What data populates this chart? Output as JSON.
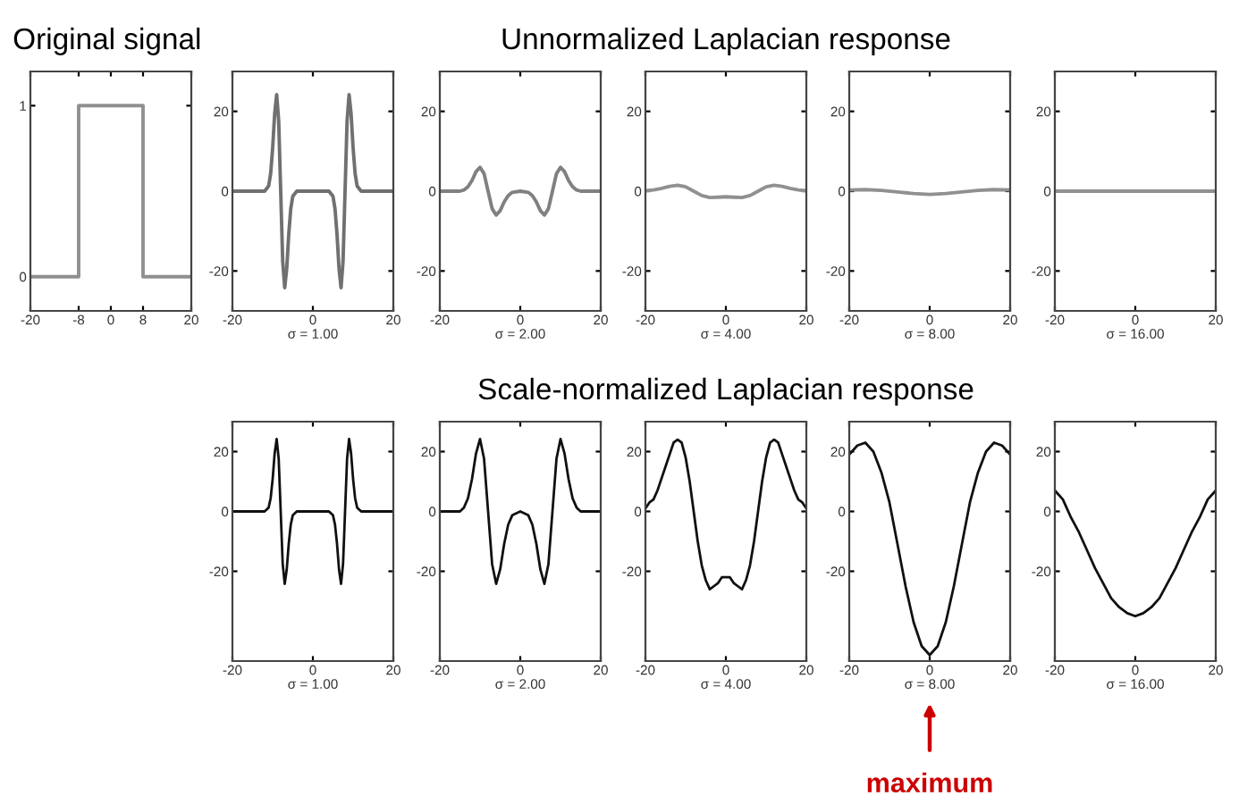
{
  "chart_data": [
    {
      "type": "line",
      "title": "Original signal",
      "xlim": [
        -20,
        20
      ],
      "xticks": [
        -20,
        -8,
        0,
        8,
        20
      ],
      "ylim": [
        -0.2,
        1.2
      ],
      "yticks": [
        0,
        1
      ],
      "series": [
        {
          "color": "#909090",
          "x": [
            -20,
            -8,
            -8,
            8,
            8,
            20
          ],
          "values": [
            0,
            0,
            1,
            1,
            0,
            0
          ]
        }
      ]
    },
    {
      "type": "line",
      "xlabel": "σ = 1.00",
      "xlim": [
        -20,
        20
      ],
      "xticks": [
        -20,
        0,
        20
      ],
      "ylim": [
        -30,
        30
      ],
      "yticks": [
        -20,
        0,
        20
      ],
      "series": [
        {
          "color": "#707070",
          "x": [
            -20,
            -12,
            -11,
            -10.5,
            -10,
            -9.5,
            -9,
            -8.5,
            -8,
            -7.5,
            -7,
            -6.5,
            -6,
            -5.5,
            -5,
            -4,
            4,
            5,
            5.5,
            6,
            6.5,
            7,
            7.5,
            8,
            8.5,
            9,
            9.5,
            10,
            10.5,
            11,
            12,
            20
          ],
          "values": [
            0,
            0,
            1.3,
            4.4,
            10.8,
            19.4,
            24.2,
            17.6,
            0,
            -17.6,
            -24.2,
            -19.4,
            -10.8,
            -4.4,
            -1.3,
            0,
            0,
            -1.3,
            -4.4,
            -10.8,
            -19.4,
            -24.2,
            -17.6,
            0,
            17.6,
            24.2,
            19.4,
            10.8,
            4.4,
            1.3,
            0,
            0
          ]
        }
      ]
    },
    {
      "type": "line",
      "xlabel": "σ = 2.00",
      "xlim": [
        -20,
        20
      ],
      "xticks": [
        -20,
        0,
        20
      ],
      "ylim": [
        -30,
        30
      ],
      "yticks": [
        -20,
        0,
        20
      ],
      "series": [
        {
          "color": "#808080",
          "x": [
            -20,
            -15,
            -14,
            -13,
            -12,
            -11,
            -10,
            -9,
            -8,
            -7,
            -6,
            -5,
            -4,
            -3,
            -2,
            0,
            2,
            3,
            4,
            5,
            6,
            7,
            8,
            9,
            10,
            11,
            12,
            13,
            14,
            15,
            20
          ],
          "values": [
            0,
            0,
            0.3,
            1.1,
            2.7,
            4.9,
            6,
            4.4,
            0,
            -4.4,
            -6,
            -4.9,
            -2.7,
            -1.1,
            -0.3,
            0,
            -0.3,
            -1.1,
            -2.7,
            -4.9,
            -6,
            -4.4,
            0,
            4.4,
            6,
            4.9,
            2.7,
            1.1,
            0.3,
            0,
            0
          ]
        }
      ]
    },
    {
      "type": "line",
      "title": "Unnormalized Laplacian response",
      "xlabel": "σ = 4.00",
      "xlim": [
        -20,
        20
      ],
      "xticks": [
        -20,
        0,
        20
      ],
      "ylim": [
        -30,
        30
      ],
      "yticks": [
        -20,
        0,
        20
      ],
      "series": [
        {
          "color": "#909090",
          "x": [
            -20,
            -18,
            -16,
            -14,
            -12,
            -10,
            -8,
            -6,
            -4,
            -2,
            0,
            2,
            4,
            6,
            8,
            10,
            12,
            14,
            16,
            18,
            20
          ],
          "values": [
            0.1,
            0.3,
            0.7,
            1.2,
            1.5,
            1.1,
            0,
            -1.1,
            -1.6,
            -1.5,
            -1.4,
            -1.5,
            -1.6,
            -1.1,
            0,
            1.1,
            1.5,
            1.2,
            0.7,
            0.3,
            0.1
          ]
        }
      ]
    },
    {
      "type": "line",
      "xlabel": "σ = 8.00",
      "xlim": [
        -20,
        20
      ],
      "xticks": [
        -20,
        0,
        20
      ],
      "ylim": [
        -30,
        30
      ],
      "yticks": [
        -20,
        0,
        20
      ],
      "series": [
        {
          "color": "#909090",
          "x": [
            -20,
            -16,
            -12,
            -8,
            -4,
            0,
            4,
            8,
            12,
            16,
            20
          ],
          "values": [
            0.3,
            0.4,
            0.2,
            -0.2,
            -0.6,
            -0.8,
            -0.6,
            -0.2,
            0.2,
            0.4,
            0.3
          ]
        }
      ]
    },
    {
      "type": "line",
      "xlabel": "σ = 16.00",
      "xlim": [
        -20,
        20
      ],
      "xticks": [
        -20,
        0,
        20
      ],
      "ylim": [
        -30,
        30
      ],
      "yticks": [
        -20,
        0,
        20
      ],
      "series": [
        {
          "color": "#909090",
          "x": [
            -20,
            -12,
            -4,
            0,
            4,
            12,
            20
          ],
          "values": [
            0,
            0,
            0,
            0,
            0,
            0,
            0
          ]
        }
      ]
    },
    {
      "type": "line",
      "xlabel": "σ = 1.00",
      "xlim": [
        -20,
        20
      ],
      "xticks": [
        -20,
        0,
        20
      ],
      "ylim": [
        -50,
        30
      ],
      "yticks": [
        -20,
        0,
        20
      ],
      "series": [
        {
          "color": "#101010",
          "x": [
            -20,
            -12,
            -11,
            -10.5,
            -10,
            -9.5,
            -9,
            -8.5,
            -8,
            -7.5,
            -7,
            -6.5,
            -6,
            -5.5,
            -5,
            -4,
            4,
            5,
            5.5,
            6,
            6.5,
            7,
            7.5,
            8,
            8.5,
            9,
            9.5,
            10,
            10.5,
            11,
            12,
            20
          ],
          "values": [
            0,
            0,
            1.3,
            4.4,
            10.8,
            19.4,
            24.2,
            17.6,
            0,
            -17.6,
            -24.2,
            -19.4,
            -10.8,
            -4.4,
            -1.3,
            0,
            0,
            -1.3,
            -4.4,
            -10.8,
            -19.4,
            -24.2,
            -17.6,
            0,
            17.6,
            24.2,
            19.4,
            10.8,
            4.4,
            1.3,
            0,
            0
          ]
        }
      ]
    },
    {
      "type": "line",
      "xlabel": "σ = 2.00",
      "xlim": [
        -20,
        20
      ],
      "xticks": [
        -20,
        0,
        20
      ],
      "ylim": [
        -50,
        30
      ],
      "yticks": [
        -20,
        0,
        20
      ],
      "series": [
        {
          "color": "#101010",
          "x": [
            -20,
            -15,
            -14,
            -13,
            -12,
            -11,
            -10,
            -9,
            -8,
            -7,
            -6,
            -5,
            -4,
            -3,
            -2,
            0,
            2,
            3,
            4,
            5,
            6,
            7,
            8,
            9,
            10,
            11,
            12,
            13,
            14,
            15,
            20
          ],
          "values": [
            0,
            0,
            1.3,
            4.4,
            10.8,
            19.4,
            24.2,
            17.6,
            0,
            -17.6,
            -24.2,
            -19.4,
            -10.8,
            -4.4,
            -1.3,
            0,
            -1.3,
            -4.4,
            -10.8,
            -19.4,
            -24.2,
            -17.6,
            0,
            17.6,
            24.2,
            19.4,
            10.8,
            4.4,
            1.3,
            0,
            0
          ]
        }
      ]
    },
    {
      "type": "line",
      "title": "Scale-normalized Laplacian response",
      "xlabel": "σ = 4.00",
      "xlim": [
        -20,
        20
      ],
      "xticks": [
        -20,
        0,
        20
      ],
      "ylim": [
        -50,
        30
      ],
      "yticks": [
        -20,
        0,
        20
      ],
      "series": [
        {
          "color": "#101010",
          "x": [
            -20,
            -19,
            -18,
            -17,
            -16,
            -15,
            -14,
            -13,
            -12,
            -11,
            -10,
            -9,
            -8,
            -7,
            -6,
            -5,
            -4,
            -3,
            -2,
            -1,
            0,
            1,
            2,
            3,
            4,
            5,
            6,
            7,
            8,
            9,
            10,
            11,
            12,
            13,
            14,
            15,
            16,
            17,
            18,
            19,
            20
          ],
          "values": [
            1,
            3,
            4,
            7,
            11,
            15,
            19,
            23,
            24,
            23,
            18,
            10,
            0,
            -10,
            -18,
            -23,
            -26,
            -25,
            -24,
            -22,
            -22,
            -22,
            -24,
            -25,
            -26,
            -23,
            -18,
            -10,
            0,
            10,
            18,
            23,
            24,
            23,
            19,
            15,
            11,
            7,
            4,
            3,
            1
          ]
        }
      ]
    },
    {
      "type": "line",
      "xlabel": "σ = 8.00",
      "xlim": [
        -20,
        20
      ],
      "xticks": [
        -20,
        0,
        20
      ],
      "ylim": [
        -50,
        30
      ],
      "yticks": [
        -20,
        0,
        20
      ],
      "annotations": [
        "maximum"
      ],
      "series": [
        {
          "color": "#101010",
          "x": [
            -20,
            -18,
            -16,
            -14,
            -12,
            -10,
            -8,
            -6,
            -4,
            -2,
            0,
            2,
            4,
            6,
            8,
            10,
            12,
            14,
            16,
            18,
            20
          ],
          "values": [
            19,
            22,
            23,
            20,
            13,
            3,
            -11,
            -25,
            -37,
            -45,
            -48,
            -45,
            -37,
            -25,
            -11,
            3,
            13,
            20,
            23,
            22,
            19
          ]
        }
      ]
    },
    {
      "type": "line",
      "xlabel": "σ = 16.00",
      "xlim": [
        -20,
        20
      ],
      "xticks": [
        -20,
        0,
        20
      ],
      "ylim": [
        -50,
        30
      ],
      "yticks": [
        -20,
        0,
        20
      ],
      "series": [
        {
          "color": "#101010",
          "x": [
            -20,
            -18,
            -16,
            -14,
            -12,
            -10,
            -8,
            -6,
            -4,
            -2,
            0,
            2,
            4,
            6,
            8,
            10,
            12,
            14,
            16,
            18,
            20
          ],
          "values": [
            7,
            4,
            -2,
            -7,
            -13,
            -19,
            -24,
            -29,
            -32,
            -34,
            -35,
            -34,
            -32,
            -29,
            -24,
            -19,
            -13,
            -7,
            -2,
            4,
            7
          ]
        }
      ]
    }
  ]
}
